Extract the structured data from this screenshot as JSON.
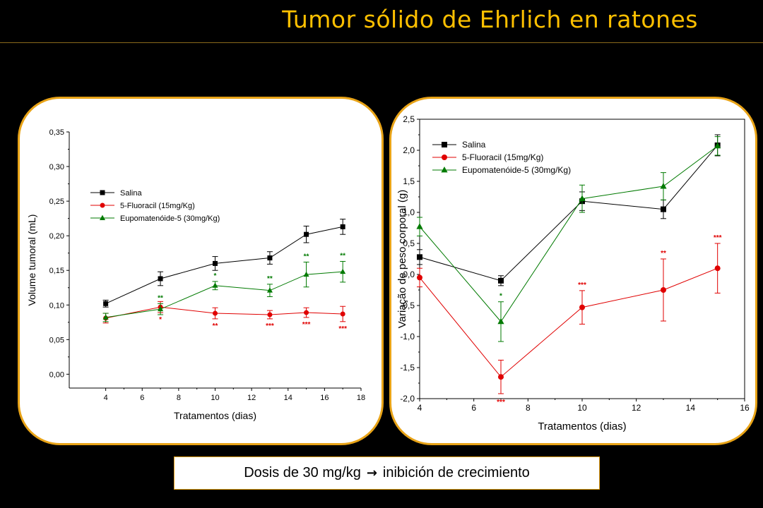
{
  "title": "Tumor sólido de Ehrlich en ratones",
  "caption": {
    "before": "Dosis de 30 mg/kg",
    "arrow": "→",
    "after": "inibición de crecimiento"
  },
  "colors": {
    "title": "#FFC000",
    "panel_border": "#E8A317",
    "salina": "#000000",
    "fluoracil": "#E00000",
    "eupomatenoide": "#007A00"
  },
  "chart_data": [
    {
      "type": "line",
      "xlabel": "Tratamentos (dias)",
      "ylabel": "Volume tumoral (mL)",
      "xlim": [
        2,
        18
      ],
      "ylim": [
        -0.02,
        0.35
      ],
      "xticks": [
        4,
        6,
        8,
        10,
        12,
        14,
        16,
        18
      ],
      "xtick_labels": [
        "4",
        "6",
        "8",
        "10",
        "12",
        "14",
        "16",
        "18"
      ],
      "yticks": [
        0.0,
        0.05,
        0.1,
        0.15,
        0.2,
        0.25,
        0.3,
        0.35
      ],
      "ytick_labels": [
        "0,00",
        "0,05",
        "0,10",
        "0,15",
        "0,20",
        "0,25",
        "0,30",
        "0,35"
      ],
      "legend": "upper-middle",
      "x": [
        4,
        7,
        10,
        13,
        15,
        17
      ],
      "series": [
        {
          "name": "Salina",
          "marker": "square",
          "color": "#000000",
          "values": [
            0.102,
            0.138,
            0.16,
            0.168,
            0.202,
            0.213
          ],
          "errors": [
            0.005,
            0.01,
            0.01,
            0.009,
            0.012,
            0.011
          ]
        },
        {
          "name": "5-Fluoracil (15mg/Kg)",
          "marker": "circle",
          "color": "#E00000",
          "values": [
            0.081,
            0.097,
            0.088,
            0.086,
            0.089,
            0.087
          ],
          "errors": [
            0.007,
            0.008,
            0.008,
            0.006,
            0.007,
            0.011
          ],
          "annotations": [
            {
              "x": 7,
              "text": "*"
            },
            {
              "x": 10,
              "text": "**"
            },
            {
              "x": 13,
              "text": "***"
            },
            {
              "x": 15,
              "text": "***"
            },
            {
              "x": 17,
              "text": "***"
            }
          ]
        },
        {
          "name": "Eupomatenóide-5 (30mg/Kg)",
          "marker": "triangle",
          "color": "#007A00",
          "values": [
            0.082,
            0.094,
            0.128,
            0.121,
            0.144,
            0.148
          ],
          "errors": [
            0.006,
            0.008,
            0.006,
            0.009,
            0.018,
            0.015
          ],
          "annotations": [
            {
              "x": 7,
              "text": "**"
            },
            {
              "x": 10,
              "text": "*"
            },
            {
              "x": 13,
              "text": "**"
            },
            {
              "x": 15,
              "text": "**"
            },
            {
              "x": 17,
              "text": "**"
            }
          ]
        }
      ]
    },
    {
      "type": "line",
      "xlabel": "Tratamentos (dias)",
      "ylabel": "Variação de peso corporal (g)",
      "xlim": [
        4,
        16
      ],
      "ylim": [
        -2.0,
        2.5
      ],
      "xticks": [
        4,
        6,
        8,
        10,
        12,
        14,
        16
      ],
      "xtick_labels": [
        "4",
        "6",
        "8",
        "10",
        "12",
        "14",
        "16"
      ],
      "yticks": [
        -2.0,
        -1.5,
        -1.0,
        -0.5,
        0.0,
        0.5,
        1.0,
        1.5,
        2.0,
        2.5
      ],
      "ytick_labels": [
        "-2,0",
        "-1,5",
        "-1,0",
        "-0,5",
        "0,0",
        "0,5",
        "1,0",
        "1,5",
        "2,0",
        "2,5"
      ],
      "legend": "top-left",
      "x": [
        4,
        7,
        10,
        13,
        15
      ],
      "series": [
        {
          "name": "Salina",
          "marker": "square",
          "color": "#000000",
          "values": [
            0.28,
            -0.1,
            1.18,
            1.05,
            2.08
          ],
          "errors": [
            0.12,
            0.08,
            0.15,
            0.15,
            0.17
          ]
        },
        {
          "name": "5-Fluoracil (15mg/Kg)",
          "marker": "circle",
          "color": "#E00000",
          "values": [
            -0.05,
            -1.65,
            -0.53,
            -0.25,
            0.1
          ],
          "errors": [
            0.15,
            0.27,
            0.27,
            0.5,
            0.4
          ],
          "annotations": [
            {
              "x": 7,
              "text": "***"
            },
            {
              "x": 10,
              "text": "***"
            },
            {
              "x": 13,
              "text": "**"
            },
            {
              "x": 15,
              "text": "***"
            }
          ]
        },
        {
          "name": "Eupomatenóide-5 (30mg/Kg)",
          "marker": "triangle",
          "color": "#007A00",
          "values": [
            0.77,
            -0.76,
            1.22,
            1.42,
            2.07
          ],
          "errors": [
            0.15,
            0.32,
            0.22,
            0.22,
            0.15
          ],
          "annotations": [
            {
              "x": 7,
              "text": "*"
            }
          ]
        }
      ]
    }
  ]
}
